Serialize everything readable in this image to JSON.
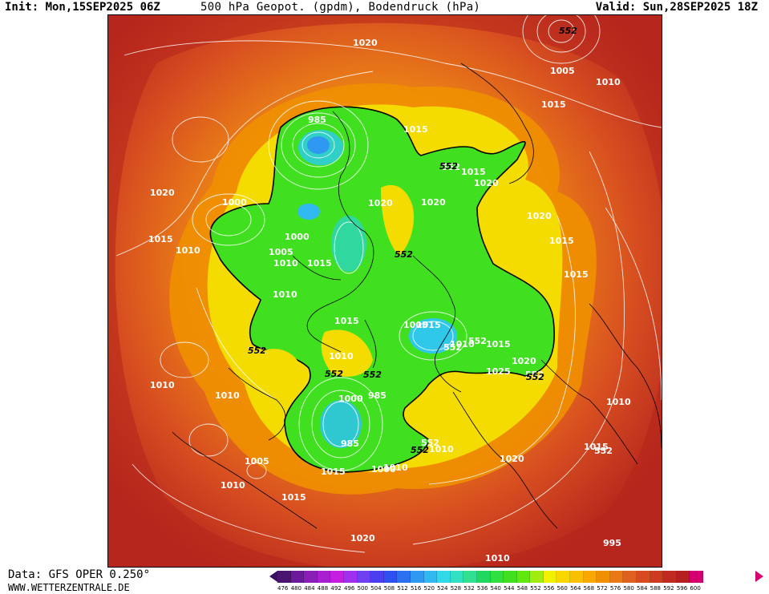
{
  "header": {
    "init": "Init: Mon,15SEP2025 06Z",
    "title": "500 hPa Geopot. (gpdm), Bodendruck (hPa)",
    "valid": "Valid: Sun,28SEP2025 18Z"
  },
  "footer": {
    "source": "Data: GFS OPER 0.250°",
    "website": "WWW.WETTERZENTRALE.DE"
  },
  "map": {
    "pressure_labels": [
      "1020",
      "1005",
      "1010",
      "1015",
      "985",
      "1015",
      "552",
      "1015",
      "1020",
      "1020",
      "1020",
      "1020",
      "1015",
      "1015",
      "1020",
      "1000",
      "1010",
      "1000",
      "1005",
      "1010",
      "1015",
      "1010",
      "552",
      "1010",
      "1015",
      "1005",
      "1015",
      "1010",
      "552",
      "1015",
      "1020",
      "1025",
      "552",
      "1010",
      "552",
      "1010",
      "1015",
      "1010",
      "552",
      "995",
      "1000",
      "985",
      "985",
      "552",
      "1010",
      "1000",
      "1010",
      "1015",
      "1005",
      "1020",
      "1010",
      "1015",
      "1020",
      "1010",
      "1015"
    ],
    "geopotential_labels": [
      "552",
      "552",
      "552",
      "552",
      "552",
      "552",
      "552",
      "552"
    ]
  },
  "colorbar": {
    "values": [
      "476",
      "480",
      "484",
      "488",
      "492",
      "496",
      "500",
      "504",
      "508",
      "512",
      "516",
      "520",
      "524",
      "528",
      "532",
      "536",
      "540",
      "544",
      "548",
      "552",
      "556",
      "560",
      "564",
      "568",
      "572",
      "576",
      "580",
      "584",
      "588",
      "592",
      "596",
      "600"
    ],
    "colors": [
      "#4b1470",
      "#6a1a9a",
      "#8a1fb8",
      "#a81fd0",
      "#c41fe0",
      "#a030f0",
      "#7040f0",
      "#4a3ef0",
      "#2f50f0",
      "#2a70f0",
      "#2f98f0",
      "#30b8f0",
      "#30d8e8",
      "#30e0c0",
      "#2fe090",
      "#20d860",
      "#30e040",
      "#40e020",
      "#60e810",
      "#a0ec10",
      "#f0f000",
      "#f8d800",
      "#f8c000",
      "#f8a800",
      "#f09000",
      "#e87818",
      "#e06020",
      "#d84a20",
      "#cc3a20",
      "#c02a20",
      "#b41f20",
      "#d40070"
    ]
  }
}
